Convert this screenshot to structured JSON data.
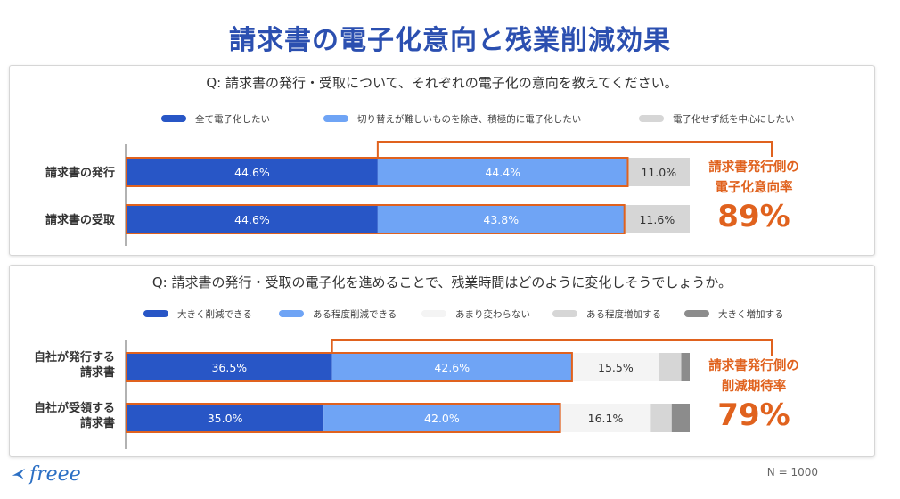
{
  "title": "請求書の電子化意向と残業削減効果",
  "note": "N = 1000",
  "logo": "freee",
  "colors": {
    "dark_blue": "#2856c6",
    "light_blue": "#6fa4f5",
    "very_light_gray": "#f4f4f4",
    "light_gray": "#d6d6d6",
    "dark_gray": "#8c8c8c",
    "highlight_orange": "#e0621e"
  },
  "chart_data": [
    {
      "type": "bar",
      "orientation": "horizontal-stacked-100",
      "title": "Q: 請求書の発行・受取について、それぞれの電子化の意向を教えてください。",
      "categories": [
        "請求書の発行",
        "請求書の受取"
      ],
      "series": [
        {
          "name": "全て電子化したい",
          "color": "#2856c6",
          "values": [
            44.6,
            44.6
          ],
          "labels": [
            "44.6%",
            "44.6%"
          ]
        },
        {
          "name": "切り替えが難しいものを除き、積極的に電子化したい",
          "color": "#6fa4f5",
          "values": [
            44.4,
            43.8
          ],
          "labels": [
            "44.4%",
            "43.8%"
          ]
        },
        {
          "name": "電子化せず紙を中心にしたい",
          "color": "#d6d6d6",
          "values": [
            11.0,
            11.6
          ],
          "labels": [
            "11.0%",
            "11.6%"
          ]
        }
      ],
      "callout": {
        "line1": "請求書発行側の",
        "line2": "電子化意向率",
        "value": "89%"
      }
    },
    {
      "type": "bar",
      "orientation": "horizontal-stacked-100",
      "title": "Q: 請求書の発行・受取の電子化を進めることで、残業時間はどのように変化しそうでしょうか。",
      "categories": [
        "自社が発行する\n請求書",
        "自社が受領する\n請求書"
      ],
      "series": [
        {
          "name": "大きく削減できる",
          "color": "#2856c6",
          "values": [
            36.5,
            35.0
          ],
          "labels": [
            "36.5%",
            "35.0%"
          ]
        },
        {
          "name": "ある程度削減できる",
          "color": "#6fa4f5",
          "values": [
            42.6,
            42.0
          ],
          "labels": [
            "42.6%",
            "42.0%"
          ]
        },
        {
          "name": "あまり変わらない",
          "color": "#f4f4f4",
          "values": [
            15.5,
            16.1
          ],
          "labels": [
            "15.5%",
            "16.1%"
          ]
        },
        {
          "name": "ある程度増加する",
          "color": "#d6d6d6",
          "values": [
            3.9,
            3.7
          ],
          "labels": [
            "",
            ""
          ]
        },
        {
          "name": "大きく増加する",
          "color": "#8c8c8c",
          "values": [
            1.5,
            3.2
          ],
          "labels": [
            "",
            ""
          ]
        }
      ],
      "callout": {
        "line1": "請求書発行側の",
        "line2": "削減期待率",
        "value": "79%"
      }
    }
  ]
}
